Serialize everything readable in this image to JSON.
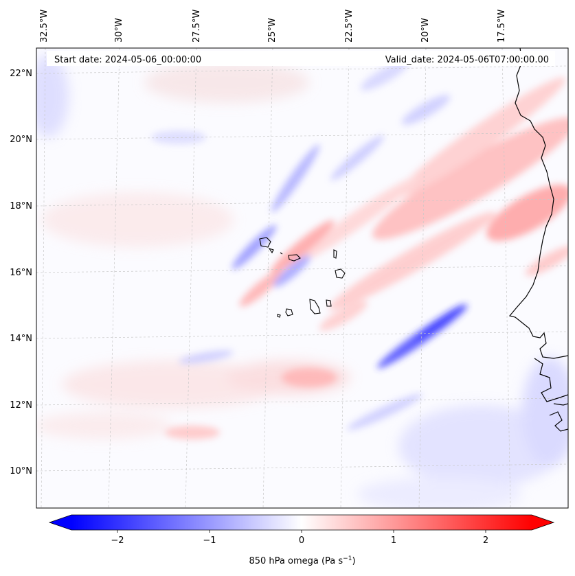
{
  "map": {
    "start_date": "Start date: 2024-05-06_00:00:00",
    "valid_date": "Valid_date: 2024-05-06T07:00:00.00",
    "lon_labels": [
      "32.5°W",
      "30°W",
      "27.5°W",
      "25°W",
      "22.5°W",
      "20°W",
      "17.5°W"
    ],
    "lat_labels": [
      "22°N",
      "20°N",
      "18°N",
      "16°N",
      "14°N",
      "12°N",
      "10°N"
    ]
  },
  "colorbar": {
    "label_main": "850 hPa omega (Pa s",
    "label_sup": "−1",
    "label_close": ")",
    "ticks": [
      "−2",
      "−1",
      "0",
      "1",
      "2"
    ],
    "tick_values": [
      -2,
      -1,
      0,
      1,
      2
    ],
    "vmin": -2.5,
    "vmax": 2.5,
    "colormap": "bwr"
  },
  "colors": {
    "negative": "#0000ff",
    "neutral": "#ffffff",
    "positive": "#ff0000",
    "coastline": "#000000",
    "gridline": "#c8c8c8"
  }
}
